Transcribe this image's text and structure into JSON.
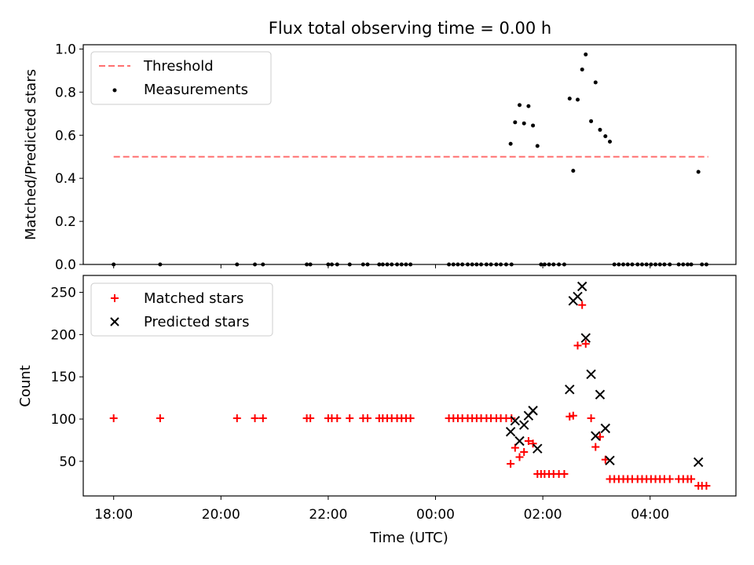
{
  "chart_data": [
    {
      "type": "scatter",
      "title": "Flux total observing time = 0.00 h",
      "ylabel": "Matched/Predicted stars",
      "xlim": [
        "17:26",
        "05:36"
      ],
      "ylim": [
        0,
        1.02
      ],
      "xticks": [
        "18:00",
        "20:00",
        "22:00",
        "00:00",
        "02:00",
        "04:00"
      ],
      "yticks": [
        "0.0",
        "0.2",
        "0.4",
        "0.6",
        "0.8",
        "1.0"
      ],
      "legend_position": "top-left",
      "legend": [
        "Threshold",
        "Measurements"
      ],
      "threshold": {
        "name": "Threshold",
        "color": "#ff7070",
        "style": "dashed",
        "value": 0.5,
        "x_start": "18:00",
        "x_end": "05:05"
      },
      "series": [
        {
          "name": "Measurements",
          "color": "#000000",
          "points": [
            [
              "18:00",
              0
            ],
            [
              "18:52",
              0
            ],
            [
              "20:18",
              0
            ],
            [
              "20:38",
              0
            ],
            [
              "20:47",
              0
            ],
            [
              "21:36",
              0
            ],
            [
              "21:40",
              0
            ],
            [
              "22:00",
              0
            ],
            [
              "22:04",
              0
            ],
            [
              "22:10",
              0
            ],
            [
              "22:24",
              0
            ],
            [
              "22:39",
              0
            ],
            [
              "22:44",
              0
            ],
            [
              "22:57",
              0
            ],
            [
              "23:01",
              0
            ],
            [
              "23:06",
              0
            ],
            [
              "23:11",
              0
            ],
            [
              "23:17",
              0
            ],
            [
              "23:22",
              0
            ],
            [
              "23:27",
              0
            ],
            [
              "23:32",
              0
            ],
            [
              "00:15",
              0
            ],
            [
              "00:20",
              0
            ],
            [
              "00:25",
              0
            ],
            [
              "00:30",
              0
            ],
            [
              "00:36",
              0
            ],
            [
              "00:41",
              0
            ],
            [
              "00:46",
              0
            ],
            [
              "00:51",
              0
            ],
            [
              "00:57",
              0
            ],
            [
              "01:02",
              0
            ],
            [
              "01:08",
              0
            ],
            [
              "01:13",
              0
            ],
            [
              "01:19",
              0
            ],
            [
              "01:25",
              0
            ],
            [
              "01:24",
              0.56
            ],
            [
              "01:29",
              0.66
            ],
            [
              "01:34",
              0.74
            ],
            [
              "01:39",
              0.655
            ],
            [
              "01:44",
              0.735
            ],
            [
              "01:49",
              0.645
            ],
            [
              "01:54",
              0.55
            ],
            [
              "01:58",
              0
            ],
            [
              "02:02",
              0
            ],
            [
              "02:07",
              0
            ],
            [
              "02:12",
              0
            ],
            [
              "02:18",
              0
            ],
            [
              "02:24",
              0
            ],
            [
              "02:30",
              0.77
            ],
            [
              "02:34",
              0.435
            ],
            [
              "02:39",
              0.765
            ],
            [
              "02:44",
              0.905
            ],
            [
              "02:48",
              0.975
            ],
            [
              "02:54",
              0.665
            ],
            [
              "02:59",
              0.845
            ],
            [
              "03:04",
              0.625
            ],
            [
              "03:10",
              0.595
            ],
            [
              "03:15",
              0.57
            ],
            [
              "03:20",
              0
            ],
            [
              "03:25",
              0
            ],
            [
              "03:30",
              0
            ],
            [
              "03:35",
              0
            ],
            [
              "03:40",
              0
            ],
            [
              "03:46",
              0
            ],
            [
              "03:51",
              0
            ],
            [
              "03:56",
              0
            ],
            [
              "04:01",
              0
            ],
            [
              "04:06",
              0
            ],
            [
              "04:11",
              0
            ],
            [
              "04:16",
              0
            ],
            [
              "04:22",
              0
            ],
            [
              "04:32",
              0
            ],
            [
              "04:37",
              0
            ],
            [
              "04:42",
              0
            ],
            [
              "04:46",
              0
            ],
            [
              "04:54",
              0.43
            ],
            [
              "04:58",
              0
            ],
            [
              "05:03",
              0
            ]
          ]
        }
      ]
    },
    {
      "type": "scatter",
      "xlabel": "Time (UTC)",
      "ylabel": "Count",
      "xlim": [
        "17:26",
        "05:36"
      ],
      "ylim": [
        9,
        270
      ],
      "xticks": [
        "18:00",
        "20:00",
        "22:00",
        "00:00",
        "02:00",
        "04:00"
      ],
      "yticks": [
        "50",
        "100",
        "150",
        "200",
        "250"
      ],
      "legend_position": "top-left",
      "legend": [
        "Matched stars",
        "Predicted stars"
      ],
      "series": [
        {
          "name": "Matched stars",
          "color": "#ff0000",
          "marker": "plus",
          "points": [
            [
              "18:00",
              101
            ],
            [
              "18:52",
              101
            ],
            [
              "20:18",
              101
            ],
            [
              "20:38",
              101
            ],
            [
              "20:47",
              101
            ],
            [
              "21:36",
              101
            ],
            [
              "21:40",
              101
            ],
            [
              "22:00",
              101
            ],
            [
              "22:04",
              101
            ],
            [
              "22:10",
              101
            ],
            [
              "22:24",
              101
            ],
            [
              "22:39",
              101
            ],
            [
              "22:44",
              101
            ],
            [
              "22:57",
              101
            ],
            [
              "23:01",
              101
            ],
            [
              "23:06",
              101
            ],
            [
              "23:11",
              101
            ],
            [
              "23:17",
              101
            ],
            [
              "23:22",
              101
            ],
            [
              "23:27",
              101
            ],
            [
              "23:32",
              101
            ],
            [
              "00:15",
              101
            ],
            [
              "00:20",
              101
            ],
            [
              "00:25",
              101
            ],
            [
              "00:30",
              101
            ],
            [
              "00:36",
              101
            ],
            [
              "00:41",
              101
            ],
            [
              "00:46",
              101
            ],
            [
              "00:51",
              101
            ],
            [
              "00:57",
              101
            ],
            [
              "01:02",
              101
            ],
            [
              "01:08",
              101
            ],
            [
              "01:13",
              101
            ],
            [
              "01:19",
              101
            ],
            [
              "01:25",
              101
            ],
            [
              "01:24",
              47
            ],
            [
              "01:29",
              66
            ],
            [
              "01:34",
              55
            ],
            [
              "01:39",
              61
            ],
            [
              "01:44",
              74
            ],
            [
              "01:49",
              71
            ],
            [
              "01:54",
              35
            ],
            [
              "01:58",
              35
            ],
            [
              "02:02",
              35
            ],
            [
              "02:07",
              35
            ],
            [
              "02:12",
              35
            ],
            [
              "02:18",
              35
            ],
            [
              "02:24",
              35
            ],
            [
              "02:30",
              103
            ],
            [
              "02:34",
              104
            ],
            [
              "02:39",
              187
            ],
            [
              "02:44",
              235
            ],
            [
              "02:48",
              189
            ],
            [
              "02:54",
              101
            ],
            [
              "02:59",
              67
            ],
            [
              "03:04",
              79
            ],
            [
              "03:10",
              52
            ],
            [
              "03:15",
              29
            ],
            [
              "03:20",
              29
            ],
            [
              "03:25",
              29
            ],
            [
              "03:30",
              29
            ],
            [
              "03:35",
              29
            ],
            [
              "03:40",
              29
            ],
            [
              "03:46",
              29
            ],
            [
              "03:51",
              29
            ],
            [
              "03:56",
              29
            ],
            [
              "04:01",
              29
            ],
            [
              "04:06",
              29
            ],
            [
              "04:11",
              29
            ],
            [
              "04:16",
              29
            ],
            [
              "04:22",
              29
            ],
            [
              "04:32",
              29
            ],
            [
              "04:37",
              29
            ],
            [
              "04:42",
              29
            ],
            [
              "04:46",
              29
            ],
            [
              "04:54",
              21
            ],
            [
              "04:58",
              21
            ],
            [
              "05:03",
              21
            ]
          ]
        },
        {
          "name": "Predicted stars",
          "color": "#000000",
          "marker": "x",
          "points": [
            [
              "01:24",
              85
            ],
            [
              "01:29",
              98
            ],
            [
              "01:34",
              74
            ],
            [
              "01:39",
              93
            ],
            [
              "01:44",
              104
            ],
            [
              "01:49",
              110
            ],
            [
              "01:54",
              65
            ],
            [
              "02:30",
              135
            ],
            [
              "02:34",
              240
            ],
            [
              "02:39",
              245
            ],
            [
              "02:44",
              257
            ],
            [
              "02:48",
              196
            ],
            [
              "02:54",
              153
            ],
            [
              "02:59",
              80
            ],
            [
              "03:04",
              129
            ],
            [
              "03:10",
              89
            ],
            [
              "03:15",
              51
            ],
            [
              "04:54",
              49
            ]
          ]
        }
      ]
    }
  ]
}
